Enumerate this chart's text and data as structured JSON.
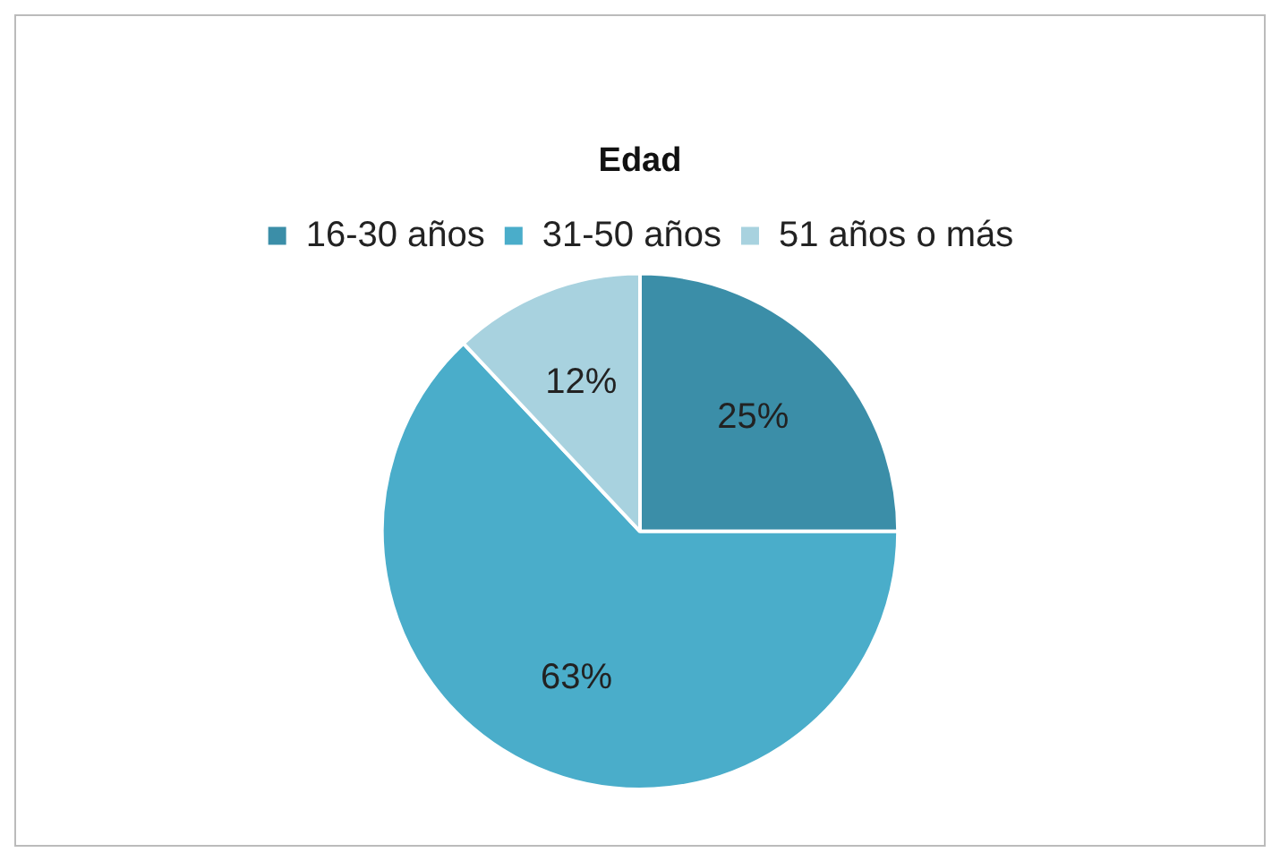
{
  "chart_data": {
    "type": "pie",
    "title": "Edad",
    "categories": [
      "16-30 años",
      "31-50 años",
      "51 años o más"
    ],
    "values": [
      25,
      63,
      12
    ],
    "colors": [
      "#3b8ea8",
      "#4aadca",
      "#a8d2df"
    ],
    "value_labels": [
      "25%",
      "63%",
      "12%"
    ],
    "legend": "top"
  }
}
